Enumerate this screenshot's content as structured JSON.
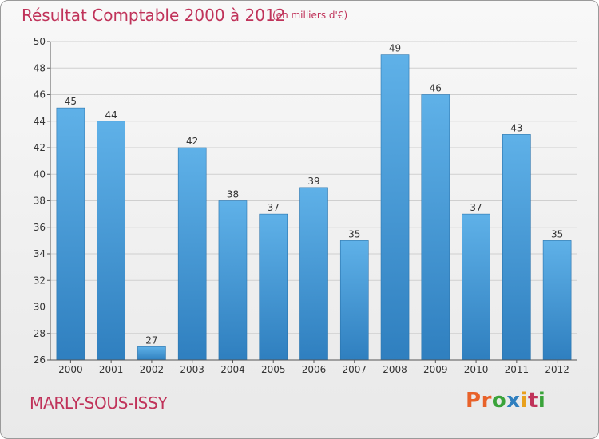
{
  "header": {
    "title": "Résultat Comptable 2000 à 2012",
    "subtitle": "(en milliers d'€)"
  },
  "footer": {
    "city": "MARLY-SOUS-ISSY",
    "logo": "Proxiti"
  },
  "colors": {
    "title": "#c0335a",
    "bar_top": "#5fb1e8",
    "bar_bottom": "#2f7fbf",
    "grid": "#cfcfcf",
    "logo_letters": [
      "#e8622a",
      "#e8622a",
      "#3aa33a",
      "#2f7fbf",
      "#e8a01c",
      "#c0335a",
      "#3aa33a"
    ]
  },
  "chart_data": {
    "type": "bar",
    "title": "Résultat Comptable 2000 à 2012",
    "subtitle": "(en milliers d'€)",
    "xlabel": "",
    "ylabel": "",
    "categories": [
      "2000",
      "2001",
      "2002",
      "2003",
      "2004",
      "2005",
      "2006",
      "2007",
      "2008",
      "2009",
      "2010",
      "2011",
      "2012"
    ],
    "values": [
      45,
      44,
      27,
      42,
      38,
      37,
      39,
      35,
      49,
      46,
      37,
      43,
      35
    ],
    "ylim": [
      26,
      50
    ],
    "yticks": [
      26,
      28,
      30,
      32,
      34,
      36,
      38,
      40,
      42,
      44,
      46,
      48,
      50
    ],
    "grid": true,
    "legend": "none"
  }
}
